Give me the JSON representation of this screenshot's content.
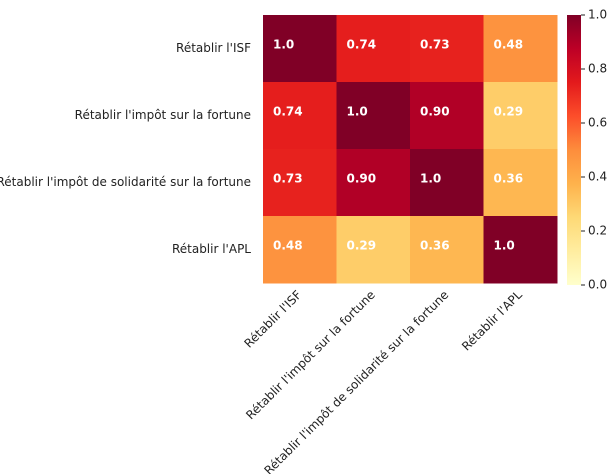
{
  "chart_data": {
    "type": "heatmap",
    "categories": [
      "Rétablir l'ISF",
      "Rétablir l'impôt sur la fortune",
      "Rétablir l'impôt de solidarité sur la fortune",
      "Rétablir l'APL"
    ],
    "values": [
      [
        1.0,
        0.74,
        0.73,
        0.48
      ],
      [
        0.74,
        1.0,
        0.9,
        0.29
      ],
      [
        0.73,
        0.9,
        1.0,
        0.36
      ],
      [
        0.48,
        0.29,
        0.36,
        1.0
      ]
    ],
    "value_labels": [
      [
        "1.0",
        "0.74",
        "0.73",
        "0.48"
      ],
      [
        "0.74",
        "1.0",
        "0.90",
        "0.29"
      ],
      [
        "0.73",
        "0.90",
        "1.0",
        "0.36"
      ],
      [
        "0.48",
        "0.29",
        "0.36",
        "1.0"
      ]
    ],
    "colormap": "YlOrRd",
    "clim": [
      0,
      1
    ],
    "cticks": [
      {
        "value": 0,
        "label": "0.0"
      },
      0.2,
      0.4,
      0.6,
      0.8,
      {
        "value": 1,
        "label": "1.0"
      }
    ]
  }
}
